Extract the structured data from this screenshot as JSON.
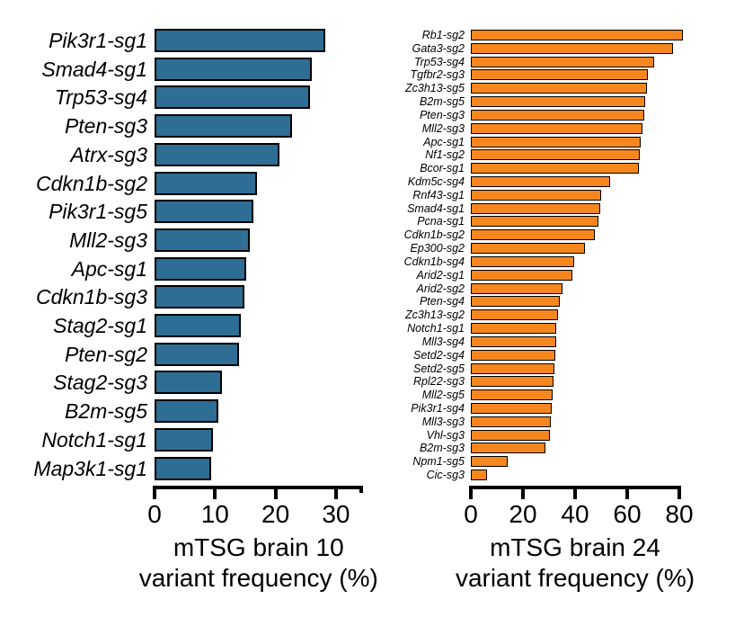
{
  "chart_data": [
    {
      "type": "bar",
      "orientation": "horizontal",
      "panel": "left",
      "xlabel_line1": "mTSG brain 10",
      "xlabel_line2": "variant frequency (%)",
      "bar_color": "#2e6d94",
      "bar_border_color": "#000000",
      "xlim": [
        0,
        34.4
      ],
      "xticks": [
        0,
        10,
        20,
        30
      ],
      "grid": false,
      "categories": [
        "Pik3r1-sg1",
        "Smad4-sg1",
        "Trp53-sg4",
        "Pten-sg3",
        "Atrx-sg3",
        "Cdkn1b-sg2",
        "Pik3r1-sg5",
        "Mll2-sg3",
        "Apc-sg1",
        "Cdkn1b-sg3",
        "Stag2-sg1",
        "Pten-sg2",
        "Stag2-sg3",
        "B2m-sg5",
        "Notch1-sg1",
        "Map3k1-sg1"
      ],
      "values": [
        28.3,
        26.0,
        25.7,
        22.8,
        20.7,
        17.0,
        16.3,
        15.8,
        15.2,
        14.8,
        14.3,
        14.0,
        11.2,
        10.5,
        9.7,
        9.4
      ]
    },
    {
      "type": "bar",
      "orientation": "horizontal",
      "panel": "right",
      "xlabel_line1": "mTSG brain 24",
      "xlabel_line2": "variant frequency (%)",
      "bar_color": "#f6871f",
      "bar_border_color": "#000000",
      "xlim": [
        0,
        80
      ],
      "xticks": [
        0,
        20,
        40,
        60,
        80
      ],
      "grid": false,
      "categories": [
        "Rb1-sg2",
        "Gata3-sg2",
        "Trp53-sg4",
        "Tgfbr2-sg3",
        "Zc3h13-sg5",
        "B2m-sg5",
        "Pten-sg3",
        "Mll2-sg3",
        "Apc-sg1",
        "Nf1-sg2",
        "Bcor-sg1",
        "Kdm5c-sg4",
        "Rnf43-sg1",
        "Smad4-sg1",
        "Pcna-sg1",
        "Cdkn1b-sg2",
        "Ep300-sg2",
        "Cdkn1b-sg4",
        "Arid2-sg1",
        "Arid2-sg2",
        "Pten-sg4",
        "Zc3h13-sg2",
        "Notch1-sg1",
        "Mll3-sg4",
        "Setd2-sg4",
        "Setd2-sg5",
        "Rpl22-sg3",
        "Mll2-sg5",
        "Pik3r1-sg4",
        "Mll3-sg3",
        "Vhl-sg3",
        "B2m-sg3",
        "Npm1-sg5",
        "Cic-sg3"
      ],
      "values": [
        81.3,
        77.7,
        70.4,
        68.0,
        67.6,
        67.0,
        66.6,
        65.9,
        65.1,
        64.8,
        64.5,
        53.4,
        50.0,
        49.7,
        49.0,
        47.6,
        43.8,
        39.8,
        38.9,
        35.3,
        34.0,
        33.3,
        32.9,
        32.6,
        32.3,
        32.0,
        31.6,
        31.3,
        31.0,
        30.8,
        30.5,
        28.7,
        14.3,
        6.2
      ]
    }
  ]
}
